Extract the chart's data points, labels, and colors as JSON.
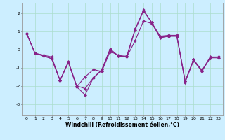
{
  "xlabel": "Windchill (Refroidissement éolien,°C)",
  "ylabel": "",
  "background_color": "#cceeff",
  "grid_color": "#aaddcc",
  "line_color": "#882288",
  "xlim": [
    -0.5,
    23.5
  ],
  "ylim": [
    -3.6,
    2.6
  ],
  "yticks": [
    -3,
    -2,
    -1,
    0,
    1,
    2
  ],
  "xticks": [
    0,
    1,
    2,
    3,
    4,
    5,
    6,
    7,
    8,
    9,
    10,
    11,
    12,
    13,
    14,
    15,
    16,
    17,
    18,
    19,
    20,
    21,
    22,
    23
  ],
  "series": [
    [
      0.9,
      -0.2,
      -0.3,
      -0.4,
      -1.7,
      -0.65,
      -2.0,
      -2.15,
      -1.55,
      -1.1,
      0.05,
      -0.35,
      -0.35,
      1.15,
      2.2,
      1.5,
      0.75,
      0.8,
      0.8,
      -1.75,
      -0.55,
      -1.15,
      -0.4,
      -0.4
    ],
    [
      0.9,
      -0.2,
      -0.3,
      -0.5,
      -1.7,
      -0.7,
      -2.05,
      -1.5,
      -1.1,
      -1.2,
      -0.1,
      -0.3,
      -0.4,
      0.5,
      1.6,
      1.45,
      0.7,
      0.75,
      0.75,
      -1.75,
      -0.55,
      -1.15,
      -0.45,
      -0.4
    ],
    [
      0.9,
      -0.2,
      -0.35,
      -0.5,
      -1.7,
      -0.7,
      -2.05,
      -2.5,
      -1.55,
      -1.15,
      0.0,
      -0.35,
      -0.4,
      1.1,
      2.15,
      1.5,
      0.65,
      0.75,
      0.75,
      -1.8,
      -0.6,
      -1.2,
      -0.45,
      -0.45
    ]
  ],
  "marker": "D",
  "markersize": 2,
  "linewidth": 0.8,
  "xlabel_fontsize": 5.5,
  "tick_fontsize": 4.5
}
